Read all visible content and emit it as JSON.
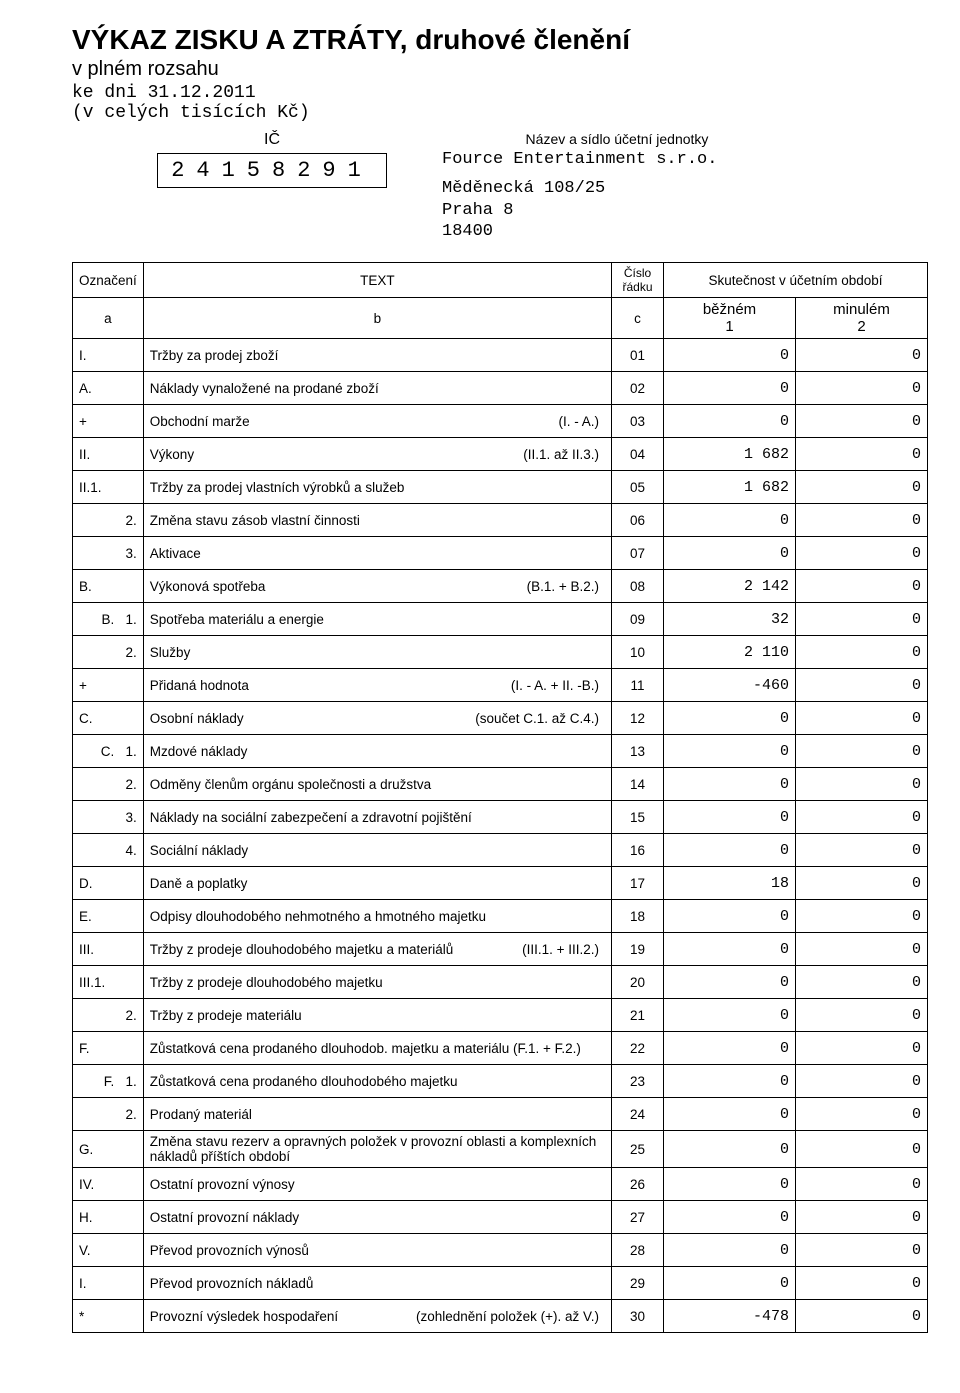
{
  "header": {
    "title": "VÝKAZ ZISKU A ZTRÁTY, druhové členění",
    "subtitle": "v plném rozsahu",
    "date_prefix": "ke dni ",
    "date": "31.12.2011",
    "units": "(v celých tisících Kč)",
    "ic_label": "IČ",
    "ic_value": "24158291",
    "entity_caption": "Název a sídlo účetní jednotky",
    "entity_name": "Fource Entertainment s.r.o.",
    "entity_addr1": "Měděnecká 108/25",
    "entity_addr2": "Praha 8",
    "entity_addr3": "18400"
  },
  "table_header": {
    "col_mark": "Označení",
    "col_text": "TEXT",
    "col_row": "Číslo řádku",
    "col_period": "Skutečnost v účetním období",
    "sub_a": "a",
    "sub_b": "b",
    "sub_c": "c",
    "sub_current": "běžném",
    "sub_current_n": "1",
    "sub_prev": "minulém",
    "sub_prev_n": "2"
  },
  "rows": [
    {
      "mark": "I.",
      "text": "Tržby za prodej zboží",
      "extra": "",
      "row": "01",
      "v1": "0",
      "v2": "0"
    },
    {
      "mark": "A.",
      "text": "Náklady vynaložené na prodané zboží",
      "extra": "",
      "row": "02",
      "v1": "0",
      "v2": "0"
    },
    {
      "mark": "+",
      "text": "Obchodní marže",
      "extra": "(I. - A.)",
      "row": "03",
      "v1": "0",
      "v2": "0"
    },
    {
      "mark": "II.",
      "text": "Výkony",
      "extra": "(II.1. až II.3.)",
      "row": "04",
      "v1": "1 682",
      "v2": "0"
    },
    {
      "mark": "II.1.",
      "text": "Tržby za prodej vlastních výrobků a služeb",
      "extra": "",
      "row": "05",
      "v1": "1 682",
      "v2": "0"
    },
    {
      "mark": "2.",
      "text": "Změna stavu zásob vlastní činnosti",
      "extra": "",
      "row": "06",
      "v1": "0",
      "v2": "0"
    },
    {
      "mark": "3.",
      "text": "Aktivace",
      "extra": "",
      "row": "07",
      "v1": "0",
      "v2": "0"
    },
    {
      "mark": "B.",
      "text": "Výkonová spotřeba",
      "extra": "(B.1. + B.2.)",
      "row": "08",
      "v1": "2 142",
      "v2": "0"
    },
    {
      "mark": "B.   1.",
      "text": "Spotřeba materiálu a energie",
      "extra": "",
      "row": "09",
      "v1": "32",
      "v2": "0"
    },
    {
      "mark": "2.",
      "text": "Služby",
      "extra": "",
      "row": "10",
      "v1": "2 110",
      "v2": "0"
    },
    {
      "mark": "+",
      "text": "Přidaná hodnota",
      "extra": "(I. - A. + II. -B.)",
      "row": "11",
      "v1": "-460",
      "v2": "0"
    },
    {
      "mark": "C.",
      "text": "Osobní náklady",
      "extra": "(součet C.1. až C.4.)",
      "row": "12",
      "v1": "0",
      "v2": "0"
    },
    {
      "mark": "C.   1.",
      "text": "Mzdové náklady",
      "extra": "",
      "row": "13",
      "v1": "0",
      "v2": "0"
    },
    {
      "mark": "2.",
      "text": "Odměny členům orgánu společnosti a družstva",
      "extra": "",
      "row": "14",
      "v1": "0",
      "v2": "0"
    },
    {
      "mark": "3.",
      "text": "Náklady na sociální zabezpečení a zdravotní pojištění",
      "extra": "",
      "row": "15",
      "v1": "0",
      "v2": "0"
    },
    {
      "mark": "4.",
      "text": "Sociální náklady",
      "extra": "",
      "row": "16",
      "v1": "0",
      "v2": "0"
    },
    {
      "mark": "D.",
      "text": "Daně a poplatky",
      "extra": "",
      "row": "17",
      "v1": "18",
      "v2": "0"
    },
    {
      "mark": "E.",
      "text": "Odpisy dlouhodobého nehmotného a hmotného majetku",
      "extra": "",
      "row": "18",
      "v1": "0",
      "v2": "0"
    },
    {
      "mark": "III.",
      "text": "Tržby z prodeje dlouhodobého majetku a materiálů",
      "extra": "(III.1. + III.2.)",
      "row": "19",
      "v1": "0",
      "v2": "0"
    },
    {
      "mark": "III.1.",
      "text": "Tržby z prodeje dlouhodobého majetku",
      "extra": "",
      "row": "20",
      "v1": "0",
      "v2": "0"
    },
    {
      "mark": "2.",
      "text": "Tržby z prodeje materiálu",
      "extra": "",
      "row": "21",
      "v1": "0",
      "v2": "0"
    },
    {
      "mark": "F.",
      "text": "Zůstatková cena prodaného dlouhodob. majetku a materiálu  (F.1. + F.2.)",
      "extra": "",
      "row": "22",
      "v1": "0",
      "v2": "0"
    },
    {
      "mark": "F.   1.",
      "text": "Zůstatková cena prodaného dlouhodobého majetku",
      "extra": "",
      "row": "23",
      "v1": "0",
      "v2": "0"
    },
    {
      "mark": "2.",
      "text": "Prodaný materiál",
      "extra": "",
      "row": "24",
      "v1": "0",
      "v2": "0"
    },
    {
      "mark": "G.",
      "text": "Změna stavu rezerv a opravných položek v provozní oblasti a komplexních nákladů příštích období",
      "extra": "",
      "row": "25",
      "v1": "0",
      "v2": "0"
    },
    {
      "mark": "IV.",
      "text": "Ostatní provozní výnosy",
      "extra": "",
      "row": "26",
      "v1": "0",
      "v2": "0"
    },
    {
      "mark": "H.",
      "text": "Ostatní provozní náklady",
      "extra": "",
      "row": "27",
      "v1": "0",
      "v2": "0"
    },
    {
      "mark": "V.",
      "text": "Převod provozních výnosů",
      "extra": "",
      "row": "28",
      "v1": "0",
      "v2": "0"
    },
    {
      "mark": "I.",
      "text": "Převod provozních nákladů",
      "extra": "",
      "row": "29",
      "v1": "0",
      "v2": "0"
    },
    {
      "mark": "*",
      "text": "Provozní výsledek hospodaření",
      "extra": "(zohlednění položek (+). až V.)",
      "row": "30",
      "v1": "-478",
      "v2": "0"
    }
  ]
}
